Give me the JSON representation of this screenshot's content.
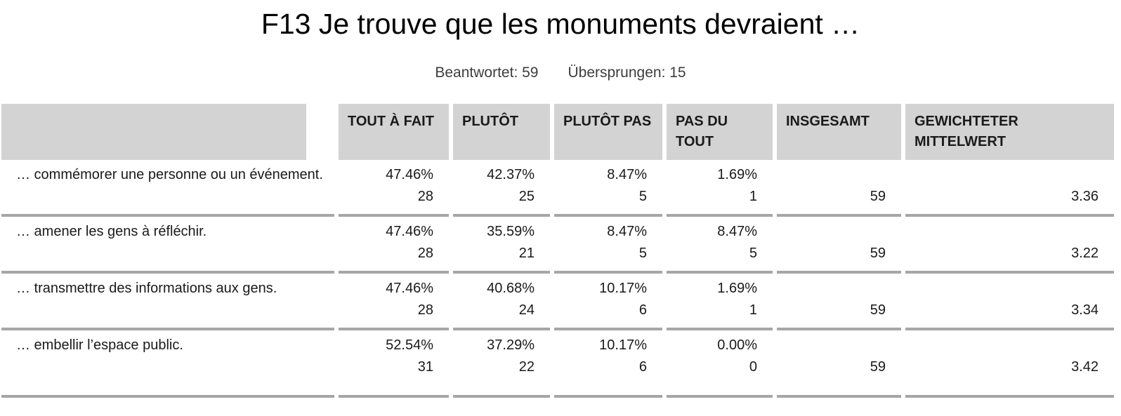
{
  "page": {
    "title": "F13 Je trouve que les monuments devraient …",
    "answered_label": "Beantwortet:",
    "answered_value": "59",
    "skipped_label": "Übersprungen:",
    "skipped_value": "15"
  },
  "table": {
    "columns": [
      "",
      "TOUT À FAIT",
      "PLUTÔT",
      "PLUTÔT PAS",
      "PAS DU TOUT",
      "INSGESAMT",
      "GEWICHTETER MITTELWERT"
    ],
    "rows": [
      {
        "question": "… commémorer une personne ou un événement.",
        "values": [
          [
            "47.46%",
            "28"
          ],
          [
            "42.37%",
            "25"
          ],
          [
            "8.47%",
            "5"
          ],
          [
            "1.69%",
            "1"
          ]
        ],
        "total": "59",
        "weighted_mean": "3.36"
      },
      {
        "question": "… amener les gens à réfléchir.",
        "values": [
          [
            "47.46%",
            "28"
          ],
          [
            "35.59%",
            "21"
          ],
          [
            "8.47%",
            "5"
          ],
          [
            "8.47%",
            "5"
          ]
        ],
        "total": "59",
        "weighted_mean": "3.22"
      },
      {
        "question": "… transmettre des informations aux gens.",
        "values": [
          [
            "47.46%",
            "28"
          ],
          [
            "40.68%",
            "24"
          ],
          [
            "10.17%",
            "6"
          ],
          [
            "1.69%",
            "1"
          ]
        ],
        "total": "59",
        "weighted_mean": "3.34"
      },
      {
        "question": "… embellir l’espace public.",
        "values": [
          [
            "52.54%",
            "31"
          ],
          [
            "37.29%",
            "22"
          ],
          [
            "10.17%",
            "6"
          ],
          [
            "0.00%",
            "0"
          ]
        ],
        "total": "59",
        "weighted_mean": "3.42"
      }
    ]
  },
  "chart_data": {
    "type": "table",
    "title": "F13 Je trouve que les monuments devraient …",
    "answered": 59,
    "skipped": 15,
    "columns": [
      "TOUT À FAIT",
      "PLUTÔT",
      "PLUTÔT PAS",
      "PAS DU TOUT",
      "INSGESAMT",
      "GEWICHTETER MITTELWERT"
    ],
    "rows": [
      {
        "label": "… commémorer une personne ou un événement.",
        "percentages": [
          47.46,
          42.37,
          8.47,
          1.69
        ],
        "counts": [
          28,
          25,
          5,
          1
        ],
        "total": 59,
        "weighted_mean": 3.36
      },
      {
        "label": "… amener les gens à réfléchir.",
        "percentages": [
          47.46,
          35.59,
          8.47,
          8.47
        ],
        "counts": [
          28,
          21,
          5,
          5
        ],
        "total": 59,
        "weighted_mean": 3.22
      },
      {
        "label": "… transmettre des informations aux gens.",
        "percentages": [
          47.46,
          40.68,
          10.17,
          1.69
        ],
        "counts": [
          28,
          24,
          6,
          1
        ],
        "total": 59,
        "weighted_mean": 3.34
      },
      {
        "label": "… embellir l’espace public.",
        "percentages": [
          52.54,
          37.29,
          10.17,
          0.0
        ],
        "counts": [
          31,
          22,
          6,
          0
        ],
        "total": 59,
        "weighted_mean": 3.42
      }
    ]
  },
  "colors": {
    "header_bg": "#d3d3d4",
    "divider": "#a6a6a6",
    "text": "#1a1a1a",
    "subtitle_text": "#3d3d3d"
  }
}
